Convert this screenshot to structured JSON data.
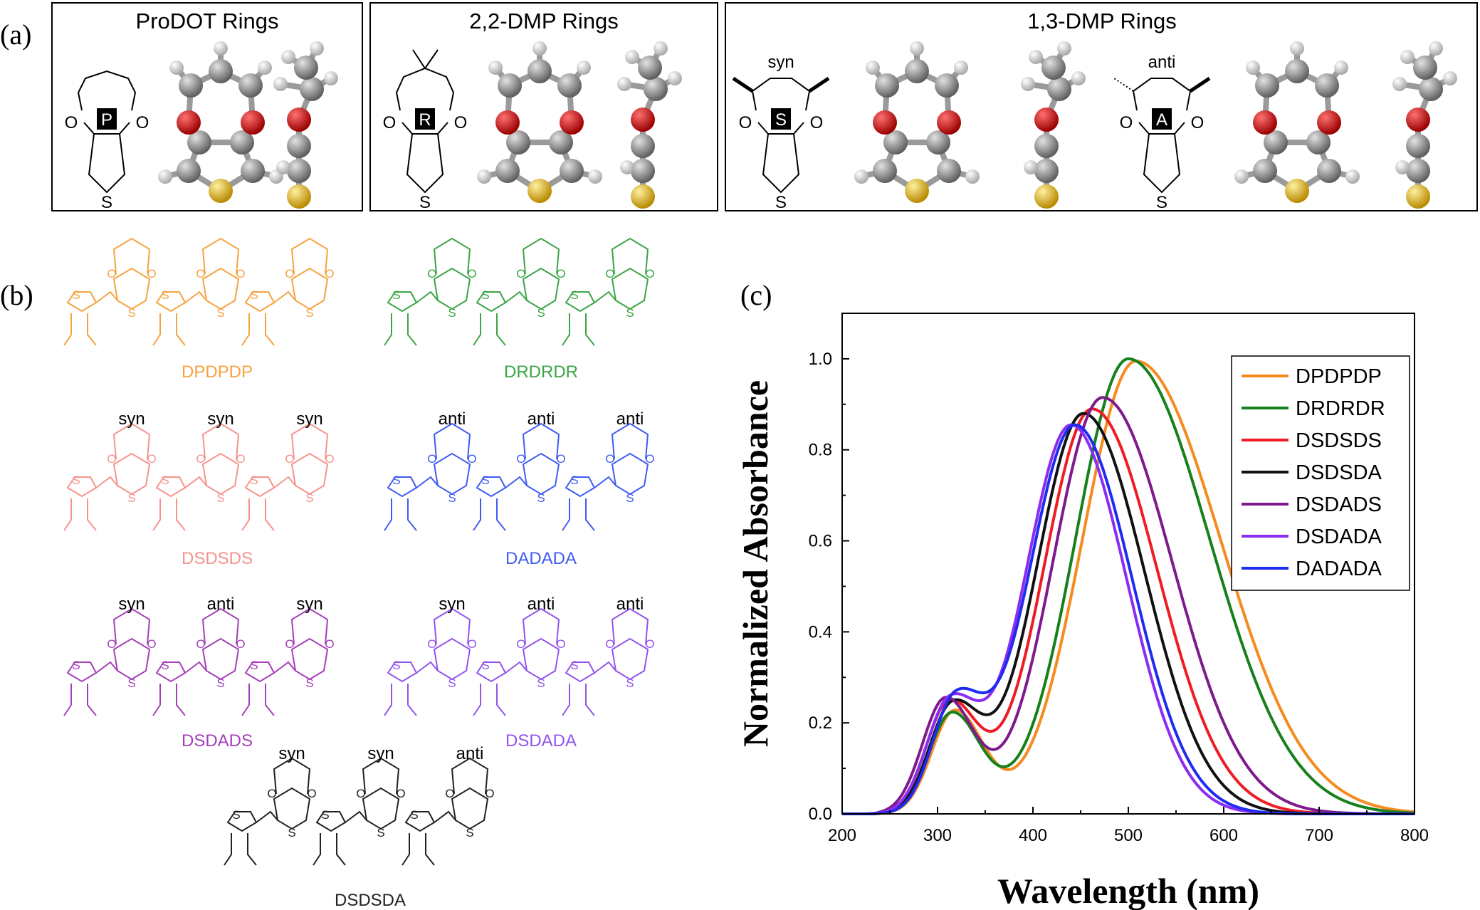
{
  "panel_labels": {
    "a": "(a)",
    "b": "(b)",
    "c": "(c)"
  },
  "panel_a": {
    "boxes": [
      {
        "title": "ProDOT Rings",
        "tag": "P"
      },
      {
        "title": "2,2-DMP Rings",
        "tag": "R"
      },
      {
        "title": "1,3-DMP Rings",
        "tags": [
          "S",
          "A"
        ],
        "sub": [
          "syn",
          "anti"
        ]
      }
    ],
    "atoms": {
      "O": "O",
      "S": "S"
    },
    "atom_colors": {
      "carbon": "#8a8a8a",
      "hydrogen": "#e6e6e6",
      "oxygen": "#dd1111",
      "sulfur": "#e8c21a"
    }
  },
  "panel_b": {
    "molecules": [
      {
        "name": "DPDPDP",
        "color": "#f5a340",
        "labels": [
          "",
          "",
          ""
        ]
      },
      {
        "name": "DRDRDR",
        "color": "#3aa545",
        "labels": [
          "",
          "",
          ""
        ]
      },
      {
        "name": "DSDSDS",
        "color": "#f5938c",
        "labels": [
          "syn",
          "syn",
          "syn"
        ]
      },
      {
        "name": "DADADA",
        "color": "#3f5cf0",
        "labels": [
          "anti",
          "anti",
          "anti"
        ]
      },
      {
        "name": "DSDADS",
        "color": "#a43fb8",
        "labels": [
          "syn",
          "anti",
          "syn"
        ]
      },
      {
        "name": "DSDADA",
        "color": "#9254ec",
        "labels": [
          "syn",
          "anti",
          "anti"
        ]
      },
      {
        "name": "DSDSDA",
        "color": "#222222",
        "labels": [
          "syn",
          "syn",
          "anti"
        ]
      }
    ]
  },
  "chart_data": {
    "type": "line",
    "title": "",
    "xlabel": "Wavelength (nm)",
    "ylabel": "Normalized Absorbance",
    "xlim": [
      200,
      800
    ],
    "ylim": [
      0,
      1.1
    ],
    "xticks": [
      "200",
      "300",
      "400",
      "500",
      "600",
      "700",
      "800"
    ],
    "yticks": [
      "0.0",
      "0.2",
      "0.4",
      "0.6",
      "0.8",
      "1.0"
    ],
    "legend_position": "top-right",
    "series": [
      {
        "name": "DPDPDP",
        "color": "#f58b1f",
        "peak_x": 508,
        "peak_y": 0.995,
        "low_peak_x": 318,
        "low_peak_y": 0.225,
        "min_x": 372,
        "min_y": 0.05
      },
      {
        "name": "DRDRDR",
        "color": "#17801b",
        "peak_x": 500,
        "peak_y": 1.0,
        "low_peak_x": 315,
        "low_peak_y": 0.22,
        "min_x": 368,
        "min_y": 0.07
      },
      {
        "name": "DSDSDS",
        "color": "#ee1c24",
        "peak_x": 462,
        "peak_y": 0.89,
        "low_peak_x": 312,
        "low_peak_y": 0.24,
        "min_x": 362,
        "min_y": 0.1
      },
      {
        "name": "DSDSDA",
        "color": "#111111",
        "peak_x": 453,
        "peak_y": 0.88,
        "low_peak_x": 315,
        "low_peak_y": 0.23,
        "min_x": 358,
        "min_y": 0.15
      },
      {
        "name": "DSDADS",
        "color": "#7f1a8c",
        "peak_x": 473,
        "peak_y": 0.915,
        "low_peak_x": 308,
        "low_peak_y": 0.25,
        "min_x": 365,
        "min_y": 0.09
      },
      {
        "name": "DSDADA",
        "color": "#8b2cf2",
        "peak_x": 440,
        "peak_y": 0.855,
        "low_peak_x": 312,
        "low_peak_y": 0.235,
        "min_x": 353,
        "min_y": 0.19
      },
      {
        "name": "DADADA",
        "color": "#1f2cf0",
        "peak_x": 444,
        "peak_y": 0.855,
        "low_peak_x": 318,
        "low_peak_y": 0.24,
        "min_x": 355,
        "min_y": 0.195
      }
    ]
  }
}
